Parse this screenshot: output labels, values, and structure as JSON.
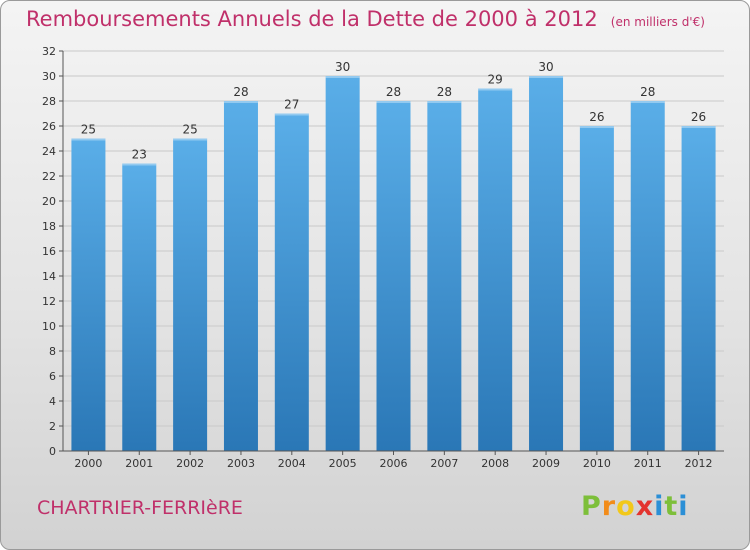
{
  "header": {
    "title": "Remboursements Annuels de la Dette de 2000 à 2012",
    "unit": "(en milliers d'€)"
  },
  "footer": {
    "town": "CHARTRIER-FERRIèRE",
    "brand_letters": [
      "P",
      "r",
      "o",
      "x",
      "i",
      "t",
      "i"
    ],
    "brand_colors": [
      "#7dbf3a",
      "#f28c1a",
      "#f2c81a",
      "#e3342f",
      "#2b8fd6",
      "#7dbf3a",
      "#2b8fd6"
    ]
  },
  "colors": {
    "bar_top": "#5aaee8",
    "bar_bottom": "#2a77b6",
    "grid": "#c9c9c9",
    "axis": "#555555",
    "text": "#333333",
    "accent": "#c0306a"
  },
  "chart_data": {
    "type": "bar",
    "title": "Remboursements Annuels de la Dette de 2000 à 2012",
    "xlabel": "",
    "ylabel": "",
    "categories": [
      "2000",
      "2001",
      "2002",
      "2003",
      "2004",
      "2005",
      "2006",
      "2007",
      "2008",
      "2009",
      "2010",
      "2011",
      "2012"
    ],
    "values": [
      25,
      23,
      25,
      28,
      27,
      30,
      28,
      28,
      29,
      30,
      26,
      28,
      26
    ],
    "ylim": [
      0,
      32
    ],
    "ytick_step": 2,
    "grid": true
  }
}
